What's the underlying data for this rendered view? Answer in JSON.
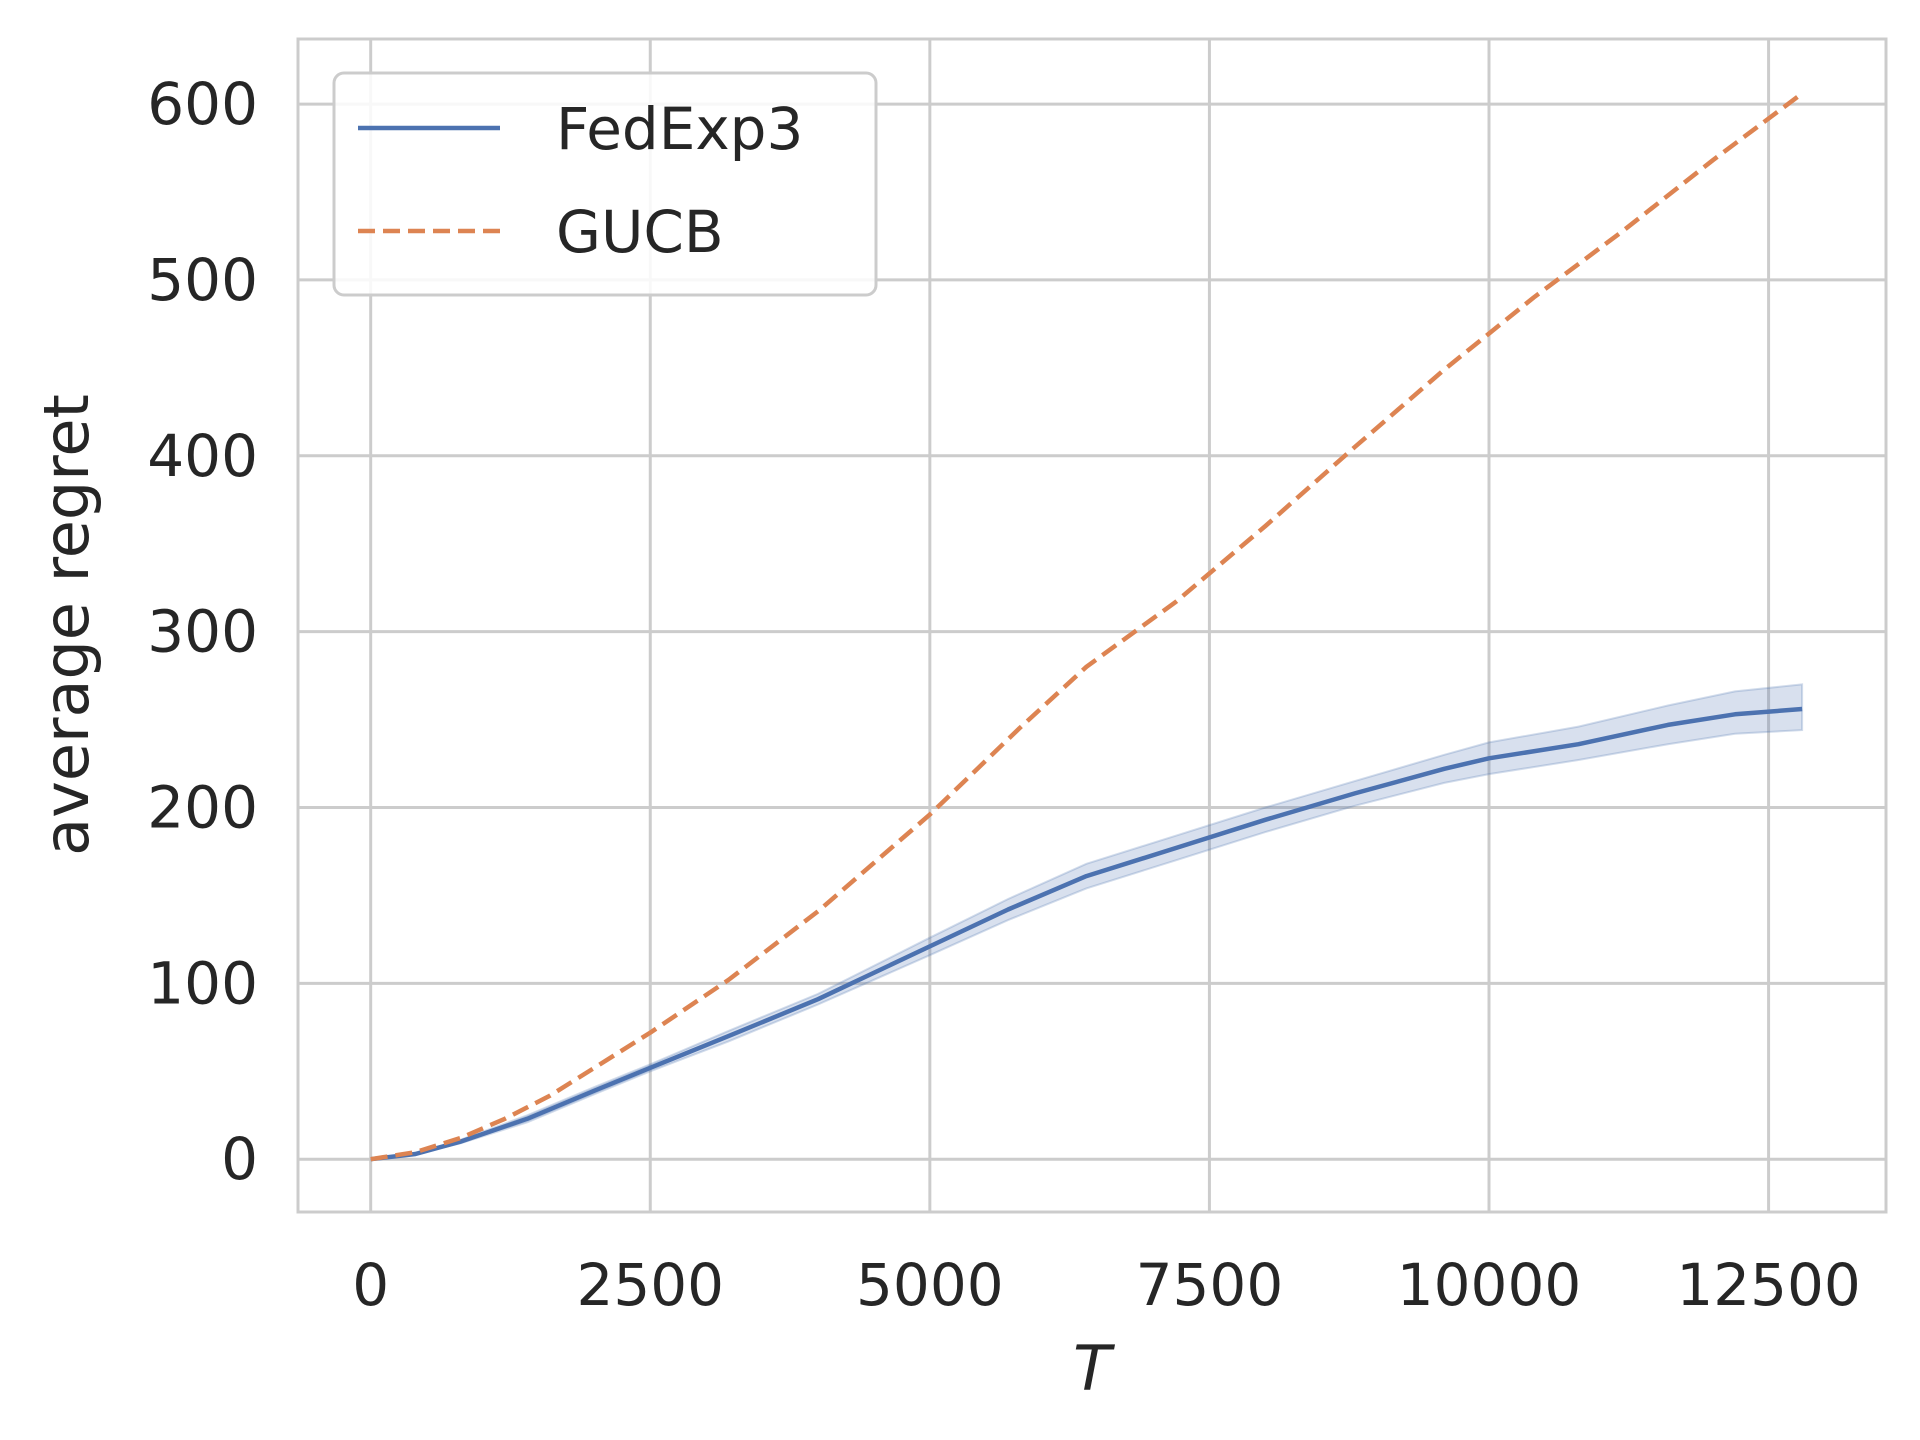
{
  "chart_data": {
    "type": "line",
    "title": "",
    "xlabel": "T",
    "ylabel": "average regret",
    "xlim": [
      -650,
      13550
    ],
    "ylim": [
      -30,
      637
    ],
    "xticks": [
      0,
      2500,
      5000,
      7500,
      10000,
      12500
    ],
    "yticks": [
      0,
      100,
      200,
      300,
      400,
      500,
      600
    ],
    "xtick_labels": [
      "0",
      "2500",
      "5000",
      "7500",
      "10000",
      "12500"
    ],
    "ytick_labels": [
      "0",
      "100",
      "200",
      "300",
      "400",
      "500",
      "600"
    ],
    "grid": true,
    "legend": "top-left",
    "series": [
      {
        "name": "FedExp3",
        "color": "#4c72b0",
        "style": "solid",
        "x": [
          0,
          400,
          800,
          1400,
          2000,
          2500,
          3200,
          4000,
          5000,
          5700,
          6400,
          7200,
          8000,
          8800,
          9600,
          10000,
          10800,
          11600,
          12200,
          12800
        ],
        "y": [
          0,
          3,
          10,
          23,
          39,
          52,
          70,
          91,
          121,
          142,
          161,
          177,
          193,
          208,
          222,
          228,
          236,
          247,
          253,
          256
        ],
        "lower": [
          0,
          3,
          9,
          21,
          37,
          50,
          67,
          88,
          116,
          136,
          154,
          170,
          186,
          201,
          214,
          219,
          227,
          236,
          242,
          244
        ],
        "upper": [
          0,
          3,
          11,
          25,
          41,
          54,
          73,
          94,
          126,
          148,
          168,
          184,
          200,
          215,
          230,
          237,
          246,
          258,
          266,
          270
        ]
      },
      {
        "name": "GUCB",
        "color": "#dd8452",
        "style": "dashed",
        "x": [
          0,
          400,
          800,
          1200,
          1600,
          2000,
          2500,
          3200,
          4000,
          5000,
          5800,
          6400,
          7200,
          8000,
          8800,
          9600,
          10400,
          11200,
          12000,
          12800
        ],
        "y": [
          0,
          4,
          12,
          23,
          36,
          52,
          72,
          102,
          141,
          196,
          245,
          280,
          317,
          360,
          405,
          449,
          490,
          528,
          568,
          606
        ]
      }
    ]
  }
}
